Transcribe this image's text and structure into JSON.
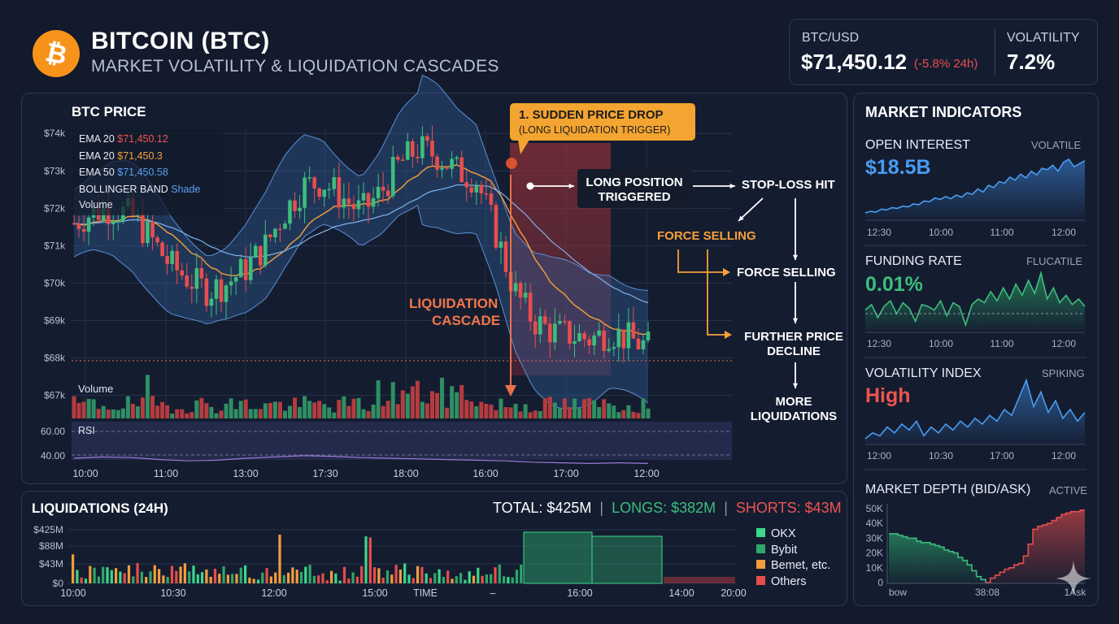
{
  "header": {
    "logo_symbol": "₿",
    "title": "BITCOIN (BTC)",
    "subtitle": "MARKET VOLATILITY & LIQUIDATION CASCADES",
    "ticker_label": "BTC/USD",
    "ticker_price": "$71,450.12",
    "ticker_change": "(-5.8% 24h)",
    "volatility_label": "VOLATILITY",
    "volatility_value": "7.2%"
  },
  "price_panel": {
    "title": "BTC PRICE",
    "legend": [
      {
        "label": "EMA 20",
        "value": "$71,450.12",
        "color": "#ef5350"
      },
      {
        "label": "EMA 20",
        "value": "$71,450.3",
        "color": "#f5a03a"
      },
      {
        "label": "EMA 50",
        "value": "$71,450.58",
        "color": "#4a90e2"
      },
      {
        "label": "BOLLINGER BAND",
        "value": "Shade",
        "color": "#4a90e2"
      }
    ],
    "volume_label": "Volume",
    "volume_label_2": "Volume",
    "rsi_label": "RSI",
    "annotation_title": "1. SUDDEN PRICE DROP",
    "annotation_sub": "(LONG LIQUIDATION TRIGGER)",
    "cascade_line1": "LIQUIDATION",
    "cascade_line2": "CASCADE",
    "flow": {
      "long_triggered_1": "LONG POSITION",
      "long_triggered_2": "TRIGGERED",
      "stop_loss": "STOP-LOSS HIT",
      "force_selling_orange": "FORCE SELLING",
      "force_selling": "FORCE SELLING",
      "further_1": "FURTHER PRICE",
      "further_2": "DECLINE",
      "more_1": "MORE",
      "more_2": "LIQUIDATIONS"
    }
  },
  "chart_data": [
    {
      "type": "candlestick",
      "title": "BTC PRICE",
      "y_ticks": [
        "$74k",
        "$73k",
        "$72k",
        "$71k",
        "$70k",
        "$69k",
        "$68k",
        "$67k"
      ],
      "x_ticks": [
        "10:00",
        "11:00",
        "13:00",
        "17:30",
        "18:00",
        "16:00",
        "17:00",
        "12:00"
      ],
      "rsi_ticks": [
        "60.00",
        "40.00"
      ],
      "price_path": [
        71.6,
        71.9,
        72.0,
        71.8,
        71.2,
        70.5,
        70.1,
        69.8,
        70.0,
        70.4,
        71.0,
        71.9,
        72.6,
        72.7,
        72.3,
        71.9,
        72.4,
        73.2,
        73.6,
        73.4,
        73.0,
        72.8,
        71.4,
        69.8,
        69.0,
        68.7,
        68.6,
        68.5,
        68.7,
        68.5,
        68.3
      ],
      "rsi_path": [
        50,
        52,
        51,
        48,
        46,
        47,
        50,
        52,
        54,
        53,
        51,
        50,
        49,
        48,
        47,
        46,
        44,
        43,
        42,
        43,
        42
      ],
      "ylim": [
        66.6,
        74.2
      ],
      "grid": true
    },
    {
      "type": "line",
      "title": "OPEN INTEREST",
      "value": "$18.5B",
      "status": "VOLATILE",
      "x_ticks": [
        "12:30",
        "10:00",
        "11:00",
        "12:00"
      ],
      "values": [
        18,
        20,
        19,
        23,
        22,
        25,
        24,
        27,
        26,
        30,
        29,
        34,
        33,
        38,
        36,
        40,
        37,
        42,
        39,
        45,
        43,
        50,
        46,
        55,
        52,
        60,
        58,
        66,
        62,
        70,
        65,
        74,
        69,
        78,
        76,
        82,
        74,
        86,
        90,
        80,
        84,
        88
      ]
    },
    {
      "type": "line",
      "title": "FUNDING RATE",
      "value": "0.01%",
      "status": "FLUCATILE",
      "x_ticks": [
        "12:30",
        "10:00",
        "11:00",
        "12:00"
      ],
      "values": [
        0,
        3,
        -4,
        2,
        5,
        -2,
        4,
        1,
        -6,
        3,
        2,
        0,
        5,
        -3,
        4,
        2,
        -8,
        3,
        6,
        4,
        10,
        5,
        12,
        6,
        14,
        8,
        16,
        9,
        20,
        6,
        12,
        4,
        8,
        3,
        6,
        2
      ]
    },
    {
      "type": "line",
      "title": "VOLATILITY INDEX",
      "value": "High",
      "status": "SPIKING",
      "x_ticks": [
        "12:00",
        "10:30",
        "17:00",
        "12:00"
      ],
      "values": [
        20,
        24,
        22,
        28,
        24,
        30,
        26,
        32,
        22,
        28,
        24,
        30,
        26,
        32,
        28,
        34,
        30,
        36,
        32,
        40,
        36,
        48,
        60,
        42,
        52,
        38,
        46,
        34,
        40,
        32,
        38
      ]
    },
    {
      "type": "area",
      "title": "MARKET DEPTH (BID/ASK)",
      "status": "ACTIVE",
      "y_ticks": [
        "50K",
        "40K",
        "30K",
        "20K",
        "10K",
        "0"
      ],
      "x_ticks": [
        "bow",
        "38:08",
        "1Ask"
      ],
      "bid_values": [
        33,
        33,
        32,
        31,
        30,
        30,
        28,
        27,
        27,
        26,
        25,
        24,
        22,
        21,
        20,
        17,
        15,
        12,
        8,
        4,
        2,
        0
      ],
      "ask_values": [
        0,
        3,
        5,
        7,
        9,
        10,
        12,
        13,
        18,
        26,
        36,
        38,
        39,
        40,
        42,
        44,
        46,
        47,
        48,
        48,
        49,
        49
      ]
    },
    {
      "type": "bar",
      "title": "LIQUIDATIONS (24H)",
      "y_ticks": [
        "$425M",
        "$88M",
        "$43M",
        "$0"
      ],
      "x_ticks": [
        "10:00",
        "10:30",
        "12:00",
        "15:00",
        "TIME",
        "–",
        "16:00",
        "14:00",
        "20:00"
      ],
      "series": [
        {
          "name": "OKX",
          "color": "#3dd68c"
        },
        {
          "name": "Bybit",
          "color": "#2ecc71"
        },
        {
          "name": "Bemet, etc.",
          "color": "#f39c3d"
        },
        {
          "name": "Others",
          "color": "#e84d4d"
        }
      ]
    }
  ],
  "indicators": {
    "title": "MARKET INDICATORS"
  },
  "liquidations": {
    "title": "LIQUIDATIONS (24H)",
    "total": "TOTAL: $425M",
    "longs": "LONGS: $382M",
    "shorts": "SHORTS: $43M"
  },
  "colors": {
    "background": "#121a2b",
    "green": "#3dbd7d",
    "red": "#e84d4d",
    "orange": "#f5a03a",
    "blue": "#4a90e2",
    "bitcoin": "#f7931a"
  }
}
